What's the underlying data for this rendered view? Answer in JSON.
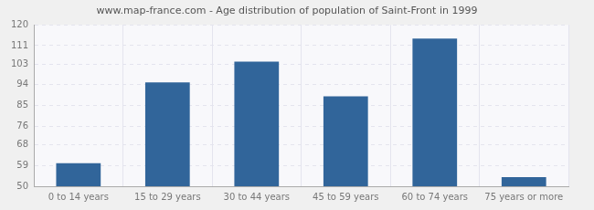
{
  "chart_data": {
    "type": "bar",
    "title": "www.map-france.com - Age distribution of population of Saint-Front in 1999",
    "categories": [
      "0 to 14 years",
      "15 to 29 years",
      "30 to 44 years",
      "45 to 59 years",
      "60 to 74 years",
      "75 years or more"
    ],
    "values": [
      60,
      95,
      104,
      89,
      114,
      54
    ],
    "color": "#31659a",
    "ylim": [
      50,
      120
    ],
    "yticks": [
      50,
      59,
      68,
      76,
      85,
      94,
      103,
      111,
      120
    ],
    "grid": true
  }
}
